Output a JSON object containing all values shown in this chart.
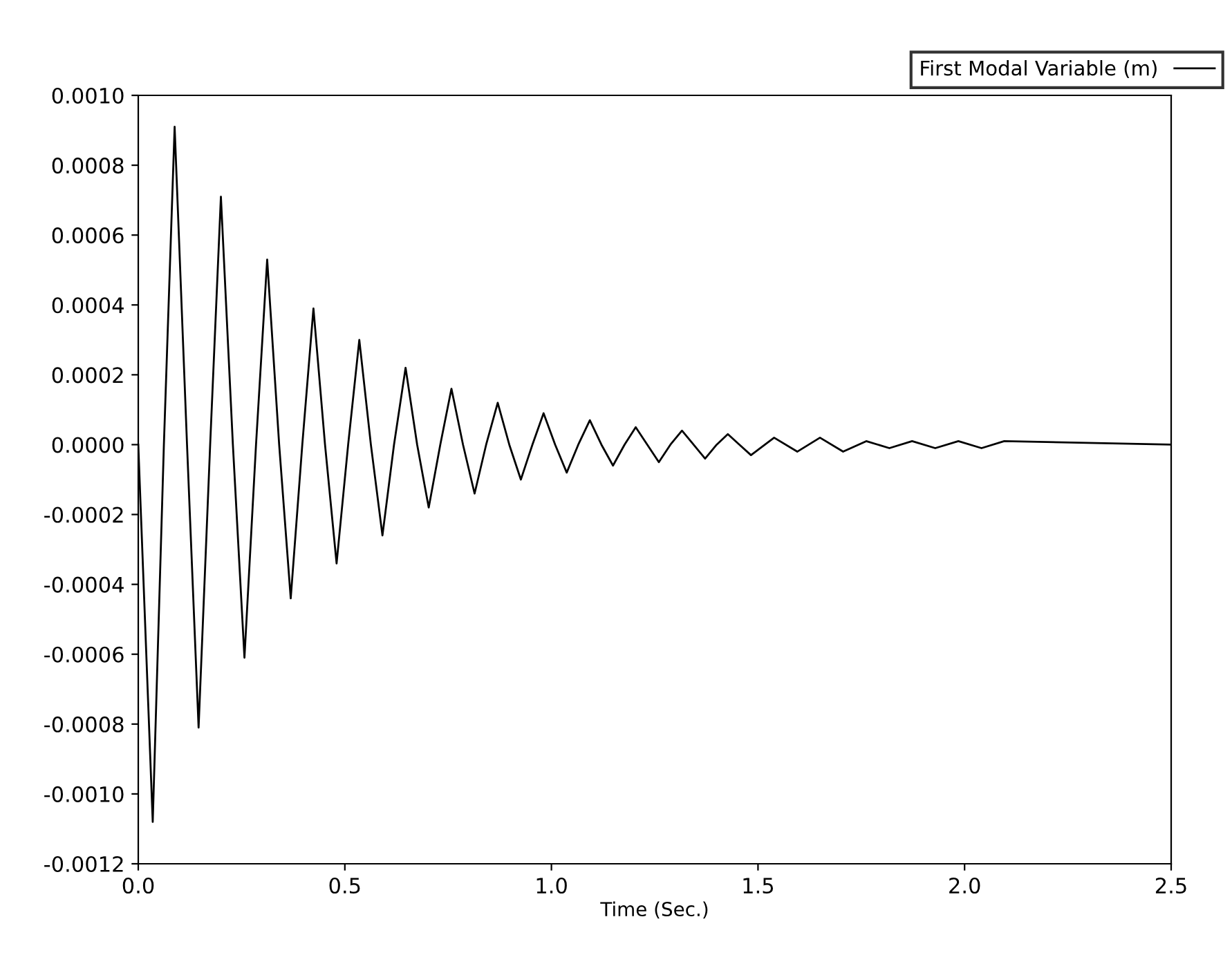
{
  "chart_data": {
    "type": "line",
    "xlabel": "Time (Sec.)",
    "series": [
      {
        "name": "First Modal Variable (m)",
        "color": "#000000",
        "x": [
          0,
          0.035,
          0.062,
          0.088,
          0.118,
          0.146,
          0.174,
          0.2,
          0.229,
          0.257,
          0.285,
          0.312,
          0.341,
          0.369,
          0.397,
          0.424,
          0.452,
          0.48,
          0.508,
          0.535,
          0.563,
          0.591,
          0.619,
          0.647,
          0.675,
          0.703,
          0.731,
          0.758,
          0.786,
          0.814,
          0.842,
          0.87,
          0.898,
          0.926,
          0.954,
          0.981,
          1.009,
          1.037,
          1.065,
          1.093,
          1.121,
          1.149,
          1.177,
          1.204,
          1.232,
          1.26,
          1.288,
          1.316,
          1.344,
          1.372,
          1.4,
          1.427,
          1.455,
          1.483,
          1.539,
          1.595,
          1.65,
          1.706,
          1.762,
          1.818,
          1.873,
          1.929,
          1.985,
          2.041,
          2.096,
          2.5
        ],
        "values": [
          0,
          -0.00108,
          0,
          0.00091,
          0,
          -0.00081,
          0,
          0.00071,
          0,
          -0.00061,
          0,
          0.00053,
          0,
          -0.00044,
          0,
          0.00039,
          0,
          -0.00034,
          0,
          0.0003,
          0,
          -0.00026,
          0,
          0.00022,
          0,
          -0.00018,
          0,
          0.00016,
          0,
          -0.00014,
          0,
          0.00012,
          0,
          -0.0001,
          0,
          9e-05,
          0,
          -8e-05,
          0,
          7e-05,
          0,
          -6e-05,
          0,
          5e-05,
          0,
          -5e-05,
          0,
          4e-05,
          0,
          -4e-05,
          0,
          3e-05,
          0,
          -3e-05,
          2e-05,
          -2e-05,
          2e-05,
          -2e-05,
          1e-05,
          -1e-05,
          1e-05,
          -1e-05,
          1e-05,
          -1e-05,
          1e-05,
          0
        ]
      }
    ],
    "xlim": [
      0,
      2.5
    ],
    "xticks": [
      {
        "value": 0,
        "label": "0.0"
      },
      0.5,
      {
        "value": 1,
        "label": "1.0"
      },
      1.5,
      {
        "value": 2,
        "label": "2.0"
      },
      2.5
    ],
    "ylim": [
      -0.0012,
      0.001
    ],
    "yticks": [
      {
        "value": -0.0012,
        "label": "-0.0012"
      },
      {
        "value": -0.001,
        "label": "-0.0010"
      },
      {
        "value": -0.0008,
        "label": "-0.0008"
      },
      {
        "value": -0.0006,
        "label": "-0.0006"
      },
      {
        "value": -0.0004,
        "label": "-0.0004"
      },
      {
        "value": -0.0002,
        "label": "-0.0002"
      },
      {
        "value": 0,
        "label": "0.0000"
      },
      {
        "value": 0.0002,
        "label": "0.0002"
      },
      {
        "value": 0.0004,
        "label": "0.0004"
      },
      {
        "value": 0.0006,
        "label": "0.0006"
      },
      {
        "value": 0.0008,
        "label": "0.0008"
      },
      {
        "value": 0.001,
        "label": "0.0010"
      }
    ],
    "grid": false,
    "legend": "top right",
    "line_style": "solid"
  }
}
